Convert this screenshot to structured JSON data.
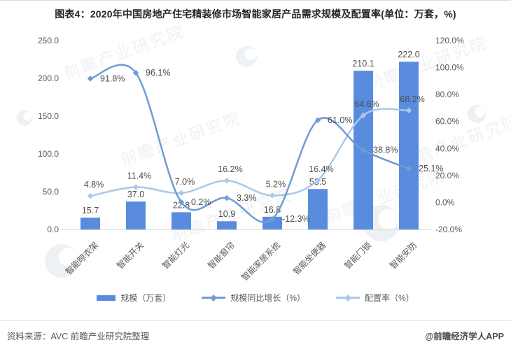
{
  "title": "图表4：2020年中国房地产住宅精装修市场智能家居产品需求规模及配置率(单位：万套，%)",
  "watermark": {
    "text": "前瞻产业研究院"
  },
  "footer": {
    "source": "资料来源：AVC 前瞻产业研究院整理",
    "credit": "@前瞻经济学人APP"
  },
  "colors": {
    "bar": "#5A8CDE",
    "growth_line": "#6F9CD4",
    "config_rate_line": "#A9C9E9",
    "axis_line": "#D9D9D9",
    "axis_text": "#595959",
    "value_label": "#4D4D4D",
    "watermark": "#7E93A8"
  },
  "chart_data": {
    "type": "combo",
    "title": "2020年中国房地产住宅精装修市场智能家居产品需求规模及配置率",
    "categories": [
      "智能晾衣架",
      "智能开关",
      "智能灯光",
      "智能窗帘",
      "智能家居系统",
      "智能坐便器",
      "智能门锁",
      "智能安防"
    ],
    "series": [
      {
        "name": "规模（万套）",
        "type": "bar",
        "axis": "left",
        "values": [
          15.7,
          37.0,
          22.8,
          10.9,
          16.8,
          53.5,
          210.1,
          222.0
        ],
        "labels": [
          "15.7",
          "37.0",
          "22.8",
          "10.9",
          "16.8",
          "53.5",
          "210.1",
          "222.0"
        ]
      },
      {
        "name": "规模同比增长（%）",
        "type": "line",
        "axis": "right",
        "values": [
          91.8,
          96.1,
          0.2,
          3.3,
          -12.3,
          61.0,
          38.8,
          25.1
        ],
        "labels": [
          "91.8%",
          "96.1%",
          "0.2%",
          "3.3%",
          "-12.3%",
          "61.0%",
          "38.8%",
          "25.1%"
        ]
      },
      {
        "name": "配置率（%）",
        "type": "line",
        "axis": "right",
        "values": [
          4.8,
          11.4,
          7.0,
          16.2,
          5.2,
          16.4,
          64.6,
          68.2
        ],
        "labels": [
          "4.8%",
          "11.4%",
          "7.0%",
          "16.2%",
          "5.2%",
          "16.4%",
          "64.6%",
          "68.2%"
        ]
      }
    ],
    "left_axis": {
      "min": 0,
      "max": 250,
      "step": 50,
      "tick_labels": [
        "0.0",
        "50.0",
        "100.0",
        "150.0",
        "200.0",
        "250.0"
      ]
    },
    "right_axis": {
      "min": -20,
      "max": 120,
      "step": 20,
      "tick_labels": [
        "-20.0%",
        "0.0%",
        "20.0%",
        "40.0%",
        "60.0%",
        "80.0%",
        "100.0%",
        "120.0%"
      ]
    },
    "grid": false,
    "legend_position": "bottom"
  }
}
